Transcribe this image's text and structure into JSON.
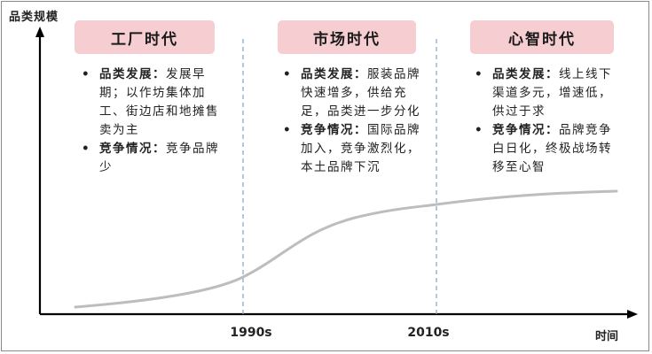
{
  "y_axis_label": "品类规模",
  "x_axis_label": "时间",
  "x_ticks": [
    "1990s",
    "2010s"
  ],
  "eras": [
    {
      "title": "工厂时代",
      "points": [
        {
          "key": "品类发展：",
          "text": "发展早期；以作坊集体加工、街边店和地摊售卖为主"
        },
        {
          "key": "竞争情况：",
          "text": "竞争品牌少"
        }
      ]
    },
    {
      "title": "市场时代",
      "points": [
        {
          "key": "品类发展：",
          "text": "服装品牌快速增多，供给充足，品类进一步分化"
        },
        {
          "key": "竞争情况：",
          "text": "国际品牌加入，竞争激烈化，本土品牌下沉"
        }
      ]
    },
    {
      "title": "心智时代",
      "points": [
        {
          "key": "品类发展：",
          "text": "线上线下渠道多元，增速低，供过于求"
        },
        {
          "key": "竞争情况：",
          "text": "品牌竞争白日化，终极战场转移至心智"
        }
      ]
    }
  ],
  "colors": {
    "header_fill": "#f6cdd0",
    "curve": "#bdbdbd",
    "divider": "#7fa3c8",
    "axis": "#000000"
  }
}
